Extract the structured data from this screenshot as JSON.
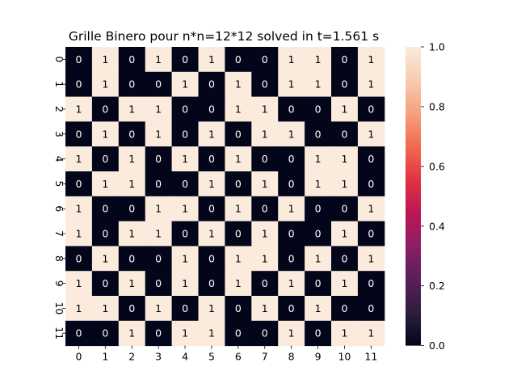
{
  "chart_data": {
    "type": "heatmap",
    "title": "Grille Binero pour n*n=12*12 solved in t=1.561 s",
    "x_tick_labels": [
      "0",
      "1",
      "2",
      "3",
      "4",
      "5",
      "6",
      "7",
      "8",
      "9",
      "10",
      "11"
    ],
    "y_tick_labels": [
      "0",
      "1",
      "2",
      "3",
      "4",
      "5",
      "6",
      "7",
      "8",
      "9",
      "10",
      "11"
    ],
    "values": [
      [
        0,
        1,
        0,
        1,
        0,
        1,
        0,
        0,
        1,
        1,
        0,
        1
      ],
      [
        0,
        1,
        0,
        0,
        1,
        0,
        1,
        0,
        1,
        1,
        0,
        1
      ],
      [
        1,
        0,
        1,
        1,
        0,
        0,
        1,
        1,
        0,
        0,
        1,
        0
      ],
      [
        0,
        1,
        0,
        1,
        0,
        1,
        0,
        1,
        1,
        0,
        0,
        1
      ],
      [
        1,
        0,
        1,
        0,
        1,
        0,
        1,
        0,
        0,
        1,
        1,
        0
      ],
      [
        0,
        1,
        1,
        0,
        0,
        1,
        0,
        1,
        0,
        1,
        1,
        0
      ],
      [
        1,
        0,
        0,
        1,
        1,
        0,
        1,
        0,
        1,
        0,
        0,
        1
      ],
      [
        1,
        0,
        1,
        1,
        0,
        1,
        0,
        1,
        0,
        0,
        1,
        0
      ],
      [
        0,
        1,
        0,
        0,
        1,
        0,
        1,
        1,
        0,
        1,
        0,
        1
      ],
      [
        1,
        0,
        1,
        0,
        1,
        0,
        1,
        0,
        1,
        0,
        1,
        0
      ],
      [
        1,
        1,
        0,
        1,
        0,
        1,
        0,
        1,
        0,
        1,
        0,
        0
      ],
      [
        0,
        0,
        1,
        0,
        1,
        1,
        0,
        0,
        1,
        0,
        1,
        1
      ]
    ],
    "annotations": true,
    "colorbar": {
      "range": [
        0.0,
        1.0
      ],
      "tick_labels": [
        "0.0",
        "0.2",
        "0.4",
        "0.6",
        "0.8",
        "1.0"
      ],
      "tick_values": [
        0.0,
        0.2,
        0.4,
        0.6,
        0.8,
        1.0
      ]
    },
    "colors": {
      "low": "#03051a",
      "high": "#faebdd",
      "low_text": "#ffffff",
      "high_text": "#000000"
    },
    "colormap_stops": [
      "#03051a",
      "#2d1e3e",
      "#5a1f5b",
      "#8b1e64",
      "#bd1655",
      "#e13342",
      "#f26a4f",
      "#f6a07e",
      "#f8ccb2",
      "#faebdd"
    ]
  }
}
